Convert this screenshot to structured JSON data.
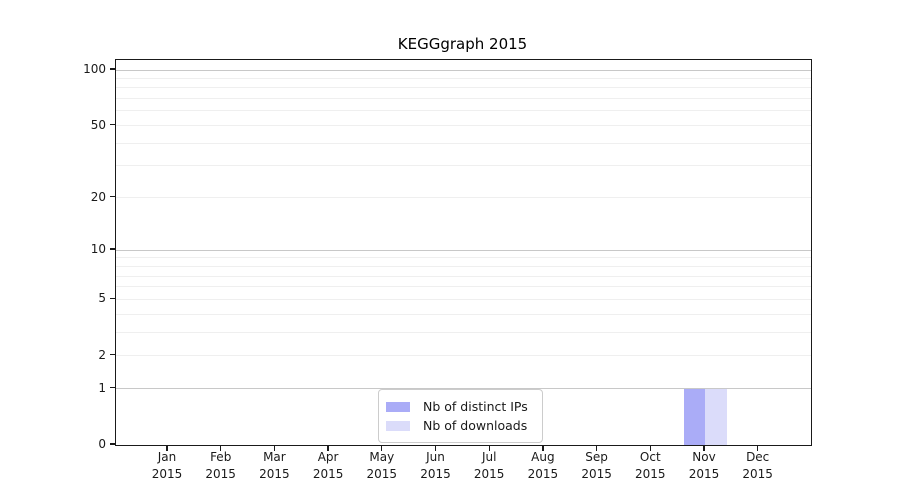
{
  "chart_data": {
    "type": "bar",
    "title": "KEGGgraph 2015",
    "categories": [
      "Jan",
      "Feb",
      "Mar",
      "Apr",
      "May",
      "Jun",
      "Jul",
      "Aug",
      "Sep",
      "Oct",
      "Nov",
      "Dec"
    ],
    "year_label": "2015",
    "series": [
      {
        "name": "Nb of distinct IPs",
        "color": "#aaacf7",
        "values": [
          0,
          0,
          0,
          0,
          0,
          0,
          0,
          0,
          0,
          0,
          1,
          0
        ]
      },
      {
        "name": "Nb of downloads",
        "color": "#dbdcfa",
        "values": [
          0,
          0,
          0,
          0,
          0,
          0,
          0,
          0,
          0,
          0,
          1,
          0
        ]
      }
    ],
    "yticks": [
      0,
      1,
      2,
      5,
      10,
      20,
      50,
      100
    ],
    "major_gridlines": [
      1,
      10,
      100
    ],
    "minor_gridlines": [
      2,
      3,
      4,
      5,
      6,
      7,
      8,
      9,
      20,
      30,
      40,
      50,
      60,
      70,
      80,
      90
    ],
    "scale": "log1p",
    "ylim": [
      0,
      112
    ],
    "xlabel": "",
    "ylabel": "",
    "grid": true,
    "legend_position": "bottom-center",
    "colors": {
      "grid_minor": "#efefef",
      "grid_major": "#c8c8c8",
      "axis": "#1a1a1a",
      "legend_border": "#cccccc"
    }
  }
}
